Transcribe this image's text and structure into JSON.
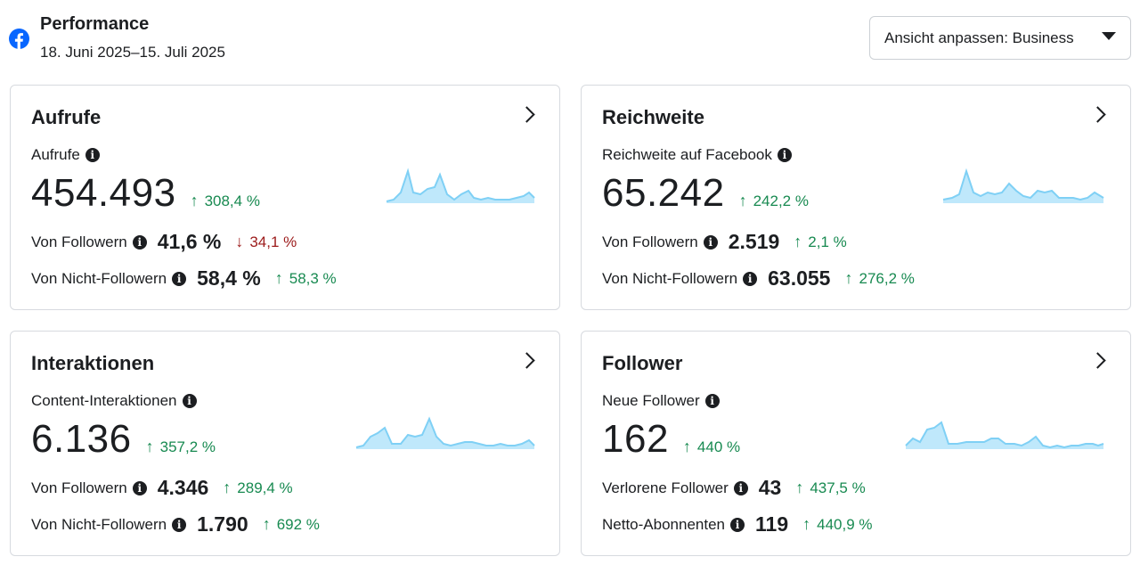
{
  "header": {
    "title": "Performance",
    "date_range": "18. Juni 2025–15. Juli 2025",
    "view_button": "Ansicht anpassen: Business"
  },
  "colors": {
    "brand": "#0866ff",
    "positive": "#188a51",
    "negative": "#9c1b1b",
    "sparkline_stroke": "#7fd0f5",
    "sparkline_fill": "#bfe8fb"
  },
  "cards": [
    {
      "title": "Aufrufe",
      "label": "Aufrufe",
      "value": "454.493",
      "change": "308,4 %",
      "row1": {
        "label": "Von Followern",
        "value": "41,6 %",
        "change": "34,1 %"
      },
      "row2": {
        "label": "Von Nicht-Followern",
        "value": "58,4 %",
        "change": "58,3 %"
      }
    },
    {
      "title": "Reichweite",
      "label": "Reichweite auf Facebook",
      "value": "65.242",
      "change": "242,2 %",
      "row1": {
        "label": "Von Followern",
        "value": "2.519",
        "change": "2,1 %"
      },
      "row2": {
        "label": "Von Nicht-Followern",
        "value": "63.055",
        "change": "276,2 %"
      }
    },
    {
      "title": "Interaktionen",
      "label": "Content-Interaktionen",
      "value": "6.136",
      "change": "357,2 %",
      "row1": {
        "label": "Von Followern",
        "value": "4.346",
        "change": "289,4 %"
      },
      "row2": {
        "label": "Von Nicht-Followern",
        "value": "1.790",
        "change": "692 %"
      }
    },
    {
      "title": "Follower",
      "label": "Neue Follower",
      "value": "162",
      "change": "440 %",
      "row1": {
        "label": "Verlorene Follower",
        "value": "43",
        "change": "437,5 %"
      },
      "row2": {
        "label": "Netto-Abonnenten",
        "value": "119",
        "change": "440,9 %"
      }
    }
  ]
}
